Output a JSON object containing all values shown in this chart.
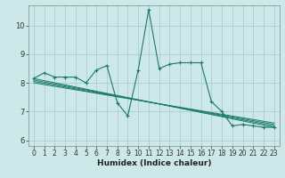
{
  "xlabel": "Humidex (Indice chaleur)",
  "bg_color": "#cce8e8",
  "grid_color": "#aacece",
  "line_color": "#1a7a6a",
  "xlim": [
    -0.5,
    23.5
  ],
  "ylim": [
    5.8,
    10.7
  ],
  "xticks": [
    0,
    1,
    2,
    3,
    4,
    5,
    6,
    7,
    8,
    9,
    10,
    11,
    12,
    13,
    14,
    15,
    16,
    17,
    18,
    19,
    20,
    21,
    22,
    23
  ],
  "yticks": [
    6,
    7,
    8,
    9,
    10
  ],
  "main_series": [
    [
      0,
      8.15
    ],
    [
      1,
      8.35
    ],
    [
      2,
      8.2
    ],
    [
      3,
      8.2
    ],
    [
      4,
      8.2
    ],
    [
      5,
      8.0
    ],
    [
      6,
      8.45
    ],
    [
      7,
      8.6
    ],
    [
      8,
      7.3
    ],
    [
      9,
      6.85
    ],
    [
      10,
      8.45
    ],
    [
      11,
      10.55
    ],
    [
      12,
      8.5
    ],
    [
      13,
      8.65
    ],
    [
      14,
      8.7
    ],
    [
      15,
      8.7
    ],
    [
      16,
      8.7
    ],
    [
      17,
      7.35
    ],
    [
      18,
      7.0
    ],
    [
      19,
      6.5
    ],
    [
      20,
      6.55
    ],
    [
      21,
      6.5
    ],
    [
      22,
      6.45
    ],
    [
      23,
      6.45
    ]
  ],
  "trend_lines": [
    [
      [
        0,
        8.15
      ],
      [
        23,
        6.45
      ]
    ],
    [
      [
        0,
        8.1
      ],
      [
        23,
        6.5
      ]
    ],
    [
      [
        0,
        8.05
      ],
      [
        23,
        6.55
      ]
    ],
    [
      [
        0,
        8.0
      ],
      [
        23,
        6.6
      ]
    ]
  ],
  "tick_fontsize": 5.5,
  "xlabel_fontsize": 6.5
}
